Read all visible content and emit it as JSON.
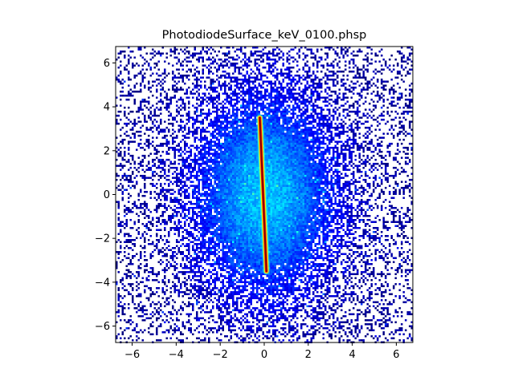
{
  "chart_data": {
    "type": "heatmap",
    "title": "PhotodiodeSurface_keV_0100.phsp",
    "xlabel": "",
    "ylabel": "",
    "xlim": [
      -6.75,
      6.75
    ],
    "ylim": [
      -6.75,
      6.75
    ],
    "x_ticks": [
      -6,
      -4,
      -2,
      0,
      2,
      4,
      6
    ],
    "y_ticks": [
      -6,
      -4,
      -2,
      0,
      2,
      4,
      6
    ],
    "x_tick_labels": [
      "−6",
      "−4",
      "−2",
      "0",
      "2",
      "4",
      "6"
    ],
    "y_tick_labels": [
      "−6",
      "−4",
      "−2",
      "0",
      "2",
      "4",
      "6"
    ],
    "colormap": "jet",
    "grid": false,
    "features": {
      "diffuse_halo": {
        "center": [
          0.0,
          0.0
        ],
        "sigma_x": 2.2,
        "sigma_y": 3.2
      },
      "hot_streak": {
        "from": [
          -0.2,
          3.5
        ],
        "to": [
          0.1,
          -3.5
        ]
      }
    },
    "colors": {
      "background": "#ffffff",
      "axes": "#000000",
      "low": "#00007f",
      "mid": "#00ffff",
      "high": "#ff0000"
    }
  }
}
